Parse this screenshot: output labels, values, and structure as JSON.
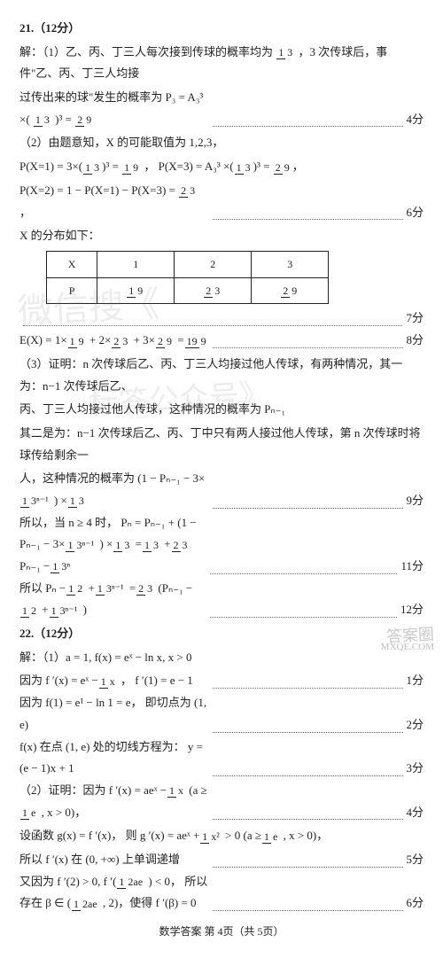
{
  "q21": {
    "title": "21.（12分）",
    "l1a": "解：（1）乙、丙、丁三人每次接到传球的概率均为",
    "l1b": "，3 次传球后，事件\"乙、丙、丁三人均接",
    "l2a": "过传出来的球\"发生的概率为 P₃ = A₃³ ×(",
    "l2b": ")³ =",
    "s1": "4分",
    "l3": "（2）由题意知，X 的可能取值为 1,2,3，",
    "l4a": "P(X=1) = 3×(",
    "l4b": ")³ =",
    "l4c": "，  P(X=3) = A₃³ ×(",
    "l4d": ")³ =",
    "l4e": "，",
    "l5a": "P(X=2) = 1 − P(X=1) − P(X=3) =",
    "l5b": "，",
    "s2": "6分",
    "l6": "X 的分布如下：",
    "table": {
      "h": [
        "X",
        "1",
        "2",
        "3"
      ],
      "r": [
        "P",
        "1/9",
        "2/3",
        "2/9"
      ]
    },
    "s3": "7分",
    "l7a": "E(X) = 1×",
    "l7b": " + 2×",
    "l7c": " + 3×",
    "l7d": " =",
    "s4": "8分",
    "l8": "（3）证明：n 次传球后乙、丙、丁三人均接过他人传球，有两种情况，其一为：n−1 次传球后乙、",
    "l9": "丙、丁三人均接过他人传球，这种情况的概率为 Pₙ₋₁",
    "l10": "其二是为：n−1 次传球后乙、丙、丁中只有两人接过他人传球，第 n 次传球时将球传给剩余一",
    "l11a": "人，这种情况的概率为 (1 − Pₙ₋₁ − 3×",
    "l11b": ") ×",
    "s5": "9分",
    "l12a": "所以，当 n ≥ 4 时，  Pₙ = Pₙ₋₁ + (1 − Pₙ₋₁ − 3×",
    "l12b": ") ×",
    "l12c": " =",
    "l12d": " +",
    "l12e": " Pₙ₋₁ −",
    "s6": "11分",
    "l13a": "所以 Pₙ −",
    "l13b": " +",
    "l13c": " =",
    "l13d": " (Pₙ₋₁ −",
    "l13e": " +",
    "l13f": ")",
    "s7": "12分",
    "frac": {
      "f13": {
        "n": "1",
        "d": "3"
      },
      "f29": {
        "n": "2",
        "d": "9"
      },
      "f19": {
        "n": "1",
        "d": "9"
      },
      "f23": {
        "n": "2",
        "d": "3"
      },
      "f199": {
        "n": "19",
        "d": "9"
      },
      "f3n1": {
        "n": "1",
        "d": "3ⁿ⁻¹"
      },
      "f12": {
        "n": "1",
        "d": "2"
      },
      "f3n": {
        "n": "1",
        "d": "3ⁿ"
      }
    }
  },
  "q22": {
    "title": "22.（12分）",
    "l1": "解：（1）a = 1, f(x) = eˣ − ln x, x > 0",
    "l2a": "因为 f ′(x) = eˣ −",
    "l2b": "，  f ′(1) = e − 1",
    "s1": "1分",
    "l3": "因为 f(1) = e¹ − ln 1 = e，  即切点为 (1, e)",
    "s2": "2分",
    "l4": "f(x) 在点 (1, e) 处的切线方程为：  y = (e − 1)x + 1",
    "s3": "3分",
    "l5a": "（2）证明：因为 f ′(x) = aeˣ −",
    "l5b": " (a ≥",
    "l5c": ", x > 0)，",
    "s4": "4分",
    "l6a": "设函数 g(x) = f ′(x)，  则 g ′(x) = aeˣ +",
    "l6b": " > 0 (a ≥",
    "l6c": ", x > 0)，",
    "l7": "所以 f ′(x) 在 (0, +∞) 上单调递增",
    "s5": "5分",
    "l8a": "又因为 f ′(2) > 0, f ′(",
    "l8b": ") < 0，  所以存在 β ∈ (",
    "l8c": ", 2)，使得 f ′(β) = 0",
    "s6": "6分",
    "frac": {
      "f1x": {
        "n": "1",
        "d": "x"
      },
      "f1e": {
        "n": "1",
        "d": "e"
      },
      "f1x2": {
        "n": "1",
        "d": "x²"
      },
      "f12ae": {
        "n": "1",
        "d": "2ae"
      }
    }
  },
  "footer": "数学答案  第 4页（共 5页）",
  "wm": {
    "a": "微信搜《",
    "b": "标答公众号》",
    "c": "答案圈",
    "d": "MXQE.COM"
  }
}
